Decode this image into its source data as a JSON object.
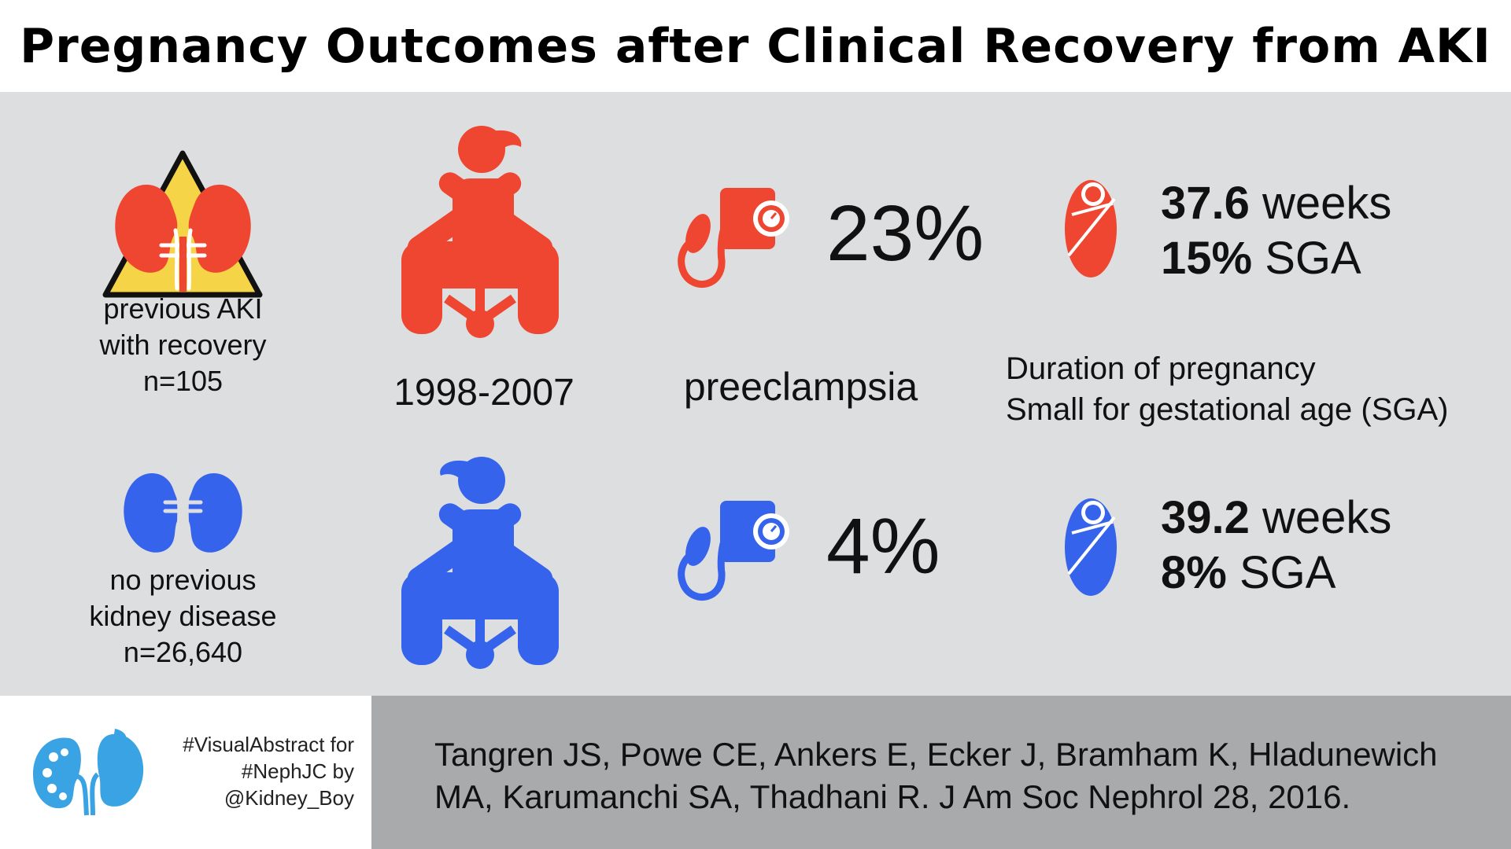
{
  "title": "Pregnancy Outcomes after Clinical Recovery from AKI",
  "period": "1998-2007",
  "outcome_label": "preeclampsia",
  "outcome_definitions": {
    "line1": "Duration of  pregnancy",
    "line2": "Small for gestational age (SGA)"
  },
  "groups": [
    {
      "line1": "previous AKI",
      "line2": "with recovery",
      "n": "n=105",
      "preeclampsia": "23%",
      "weeks_value": "37.6",
      "weeks_unit": " weeks",
      "sga_value": "15%",
      "sga_unit": " SGA",
      "color": "#ee4630"
    },
    {
      "line1": "no previous",
      "line2": "kidney disease",
      "n": "n=26,640",
      "preeclampsia": "4%",
      "weeks_value": "39.2",
      "weeks_unit": " weeks",
      "sga_value": "8%",
      "sga_unit": " SGA",
      "color": "#3563ec"
    }
  ],
  "warning_color": "#f5d547",
  "icons": [
    "kidney-warning-icon",
    "kidney-icon",
    "pregnant-woman-icon",
    "blood-pressure-cuff-icon",
    "swaddled-baby-icon",
    "nephjc-logo-icon"
  ],
  "footer": {
    "credit_line1": "#VisualAbstract for",
    "credit_line2": "#NephJC by",
    "credit_line3": "@Kidney_Boy",
    "citation_line1": "Tangren JS, Powe CE, Ankers E, Ecker J, Bramham K, Hladunewich",
    "citation_line2": "MA, Karumanchi SA, Thadhani R. J Am Soc Nephrol 28, 2016."
  }
}
